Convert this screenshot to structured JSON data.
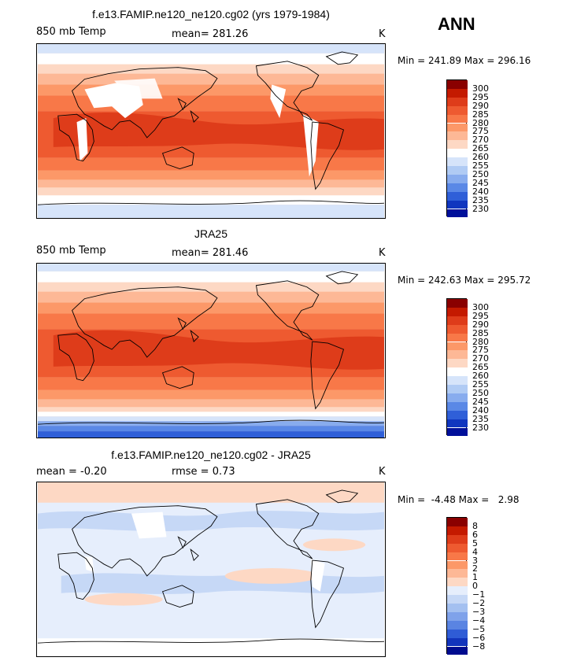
{
  "season": "ANN",
  "panels": [
    {
      "title": "f.e13.FAMIP.ne120_ne120.cg02 (yrs 1979-1984)",
      "left_label": "850 mb Temp",
      "center_label": "mean= 281.26",
      "units": "K",
      "minmax": "Min = 241.89 Max = 296.16",
      "levels": [
        "300",
        "295",
        "290",
        "285",
        "280",
        "275",
        "270",
        "265",
        "260",
        "255",
        "250",
        "245",
        "240",
        "235",
        "230"
      ],
      "colors": [
        "#8a0000",
        "#c41a00",
        "#de3c1a",
        "#ee5a30",
        "#f87848",
        "#fc9868",
        "#fdb896",
        "#fdd8c4",
        "#ffffff",
        "#d6e4fa",
        "#b0cbf4",
        "#88acee",
        "#5a88e6",
        "#2f5fd8",
        "#1036bf",
        "#00109a"
      ]
    },
    {
      "title": "JRA25",
      "left_label": "850 mb Temp",
      "center_label": "mean= 281.46",
      "units": "K",
      "minmax": "Min = 242.63 Max = 295.72",
      "levels": [
        "300",
        "295",
        "290",
        "285",
        "280",
        "275",
        "270",
        "265",
        "260",
        "255",
        "250",
        "245",
        "240",
        "235",
        "230"
      ],
      "colors": [
        "#8a0000",
        "#c41a00",
        "#de3c1a",
        "#ee5a30",
        "#f87848",
        "#fc9868",
        "#fdb896",
        "#fdd8c4",
        "#ffffff",
        "#d6e4fa",
        "#b0cbf4",
        "#88acee",
        "#5a88e6",
        "#2f5fd8",
        "#1036bf",
        "#00109a"
      ]
    },
    {
      "title": "f.e13.FAMIP.ne120_ne120.cg02 - JRA25",
      "left_label": "mean =   -0.20",
      "center_label": "rmse =    0.73",
      "units": "K",
      "minmax": "Min =  -4.48 Max =   2.98",
      "levels": [
        "8",
        "6",
        "5",
        "4",
        "3",
        "2",
        "1",
        "0",
        "−1",
        "−2",
        "−3",
        "−4",
        "−5",
        "−6",
        "−8"
      ],
      "colors": [
        "#8a0000",
        "#c41a00",
        "#de3c1a",
        "#ee5a30",
        "#f87848",
        "#fc9868",
        "#fdb896",
        "#fdd8c4",
        "#e6eefc",
        "#c6d8f6",
        "#a4c0f0",
        "#7fa2ea",
        "#5a84e2",
        "#2f5cd6",
        "#1234bc",
        "#000c8f"
      ]
    }
  ]
}
